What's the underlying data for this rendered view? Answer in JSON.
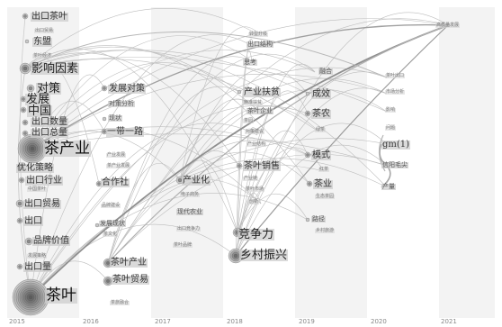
{
  "years": [
    "2015",
    "2016",
    "2017",
    "2018",
    "2019",
    "2020",
    "2021"
  ],
  "keywords": {
    "k1": "出口茶叶",
    "k2": "东盟",
    "k3": "影响因素",
    "k4": "对策",
    "k5": "发展",
    "k6": "中国",
    "k7": "出口数量",
    "k8": "出口总量",
    "k9": "茶产业",
    "k10": "优化策略",
    "k11": "出口行业",
    "k12": "出口贸易",
    "k13": "出口",
    "k14": "品牌价值",
    "k15": "出口量",
    "k16": "茶叶",
    "k17": "发展对策",
    "k18": "对策分析",
    "k19": "现状",
    "k20": "一带一路",
    "k21": "合作社",
    "k22": "发展现状",
    "k23": "茶叶产业",
    "k24": "茶叶贸易",
    "k25": "产业化",
    "k26": "竞争力",
    "k27": "乡村振兴",
    "k28": "产业扶贫",
    "k29": "茶叶销售",
    "k30": "成效",
    "k31": "茶农",
    "k32": "模式",
    "k33": "茶业",
    "k34": "路径",
    "k35": "gm(1)",
    "k36": "信阳毛尖",
    "k37": "产量",
    "k38": "出口结构",
    "k39": "高质量发展",
    "k40": "融合",
    "k41": "思考",
    "k42": "茶叶企业",
    "k43": "现代农业"
  },
  "small_terms": [
    "出口贸易",
    "茶叶经济",
    "中国茶叶",
    "发展策略",
    "产业发展",
    "茶产业发展",
    "品牌建设",
    "茶文化",
    "茶旅融合",
    "电子商务",
    "出口竞争力",
    "茶叶品牌",
    "转型升级",
    "精准扶贫",
    "茶园",
    "对策建议",
    "产业结构",
    "产业链",
    "茶叶市场",
    "创新",
    "绿茶",
    "红茶",
    "生态茶园",
    "乡村旅游",
    "茶叶出口",
    "市场分析",
    "影响",
    "问题",
    "机遇",
    "挑战",
    "实证分析",
    "产业集群",
    "茶企",
    "茶产品",
    "品牌",
    "营销",
    "供给侧",
    "质量",
    "标准化",
    "农村",
    "扶贫",
    "合作",
    "贸易",
    "价格",
    "经济效益",
    "茶叶种植",
    "农业",
    "政策",
    "振兴",
    "模式创新"
  ]
}
